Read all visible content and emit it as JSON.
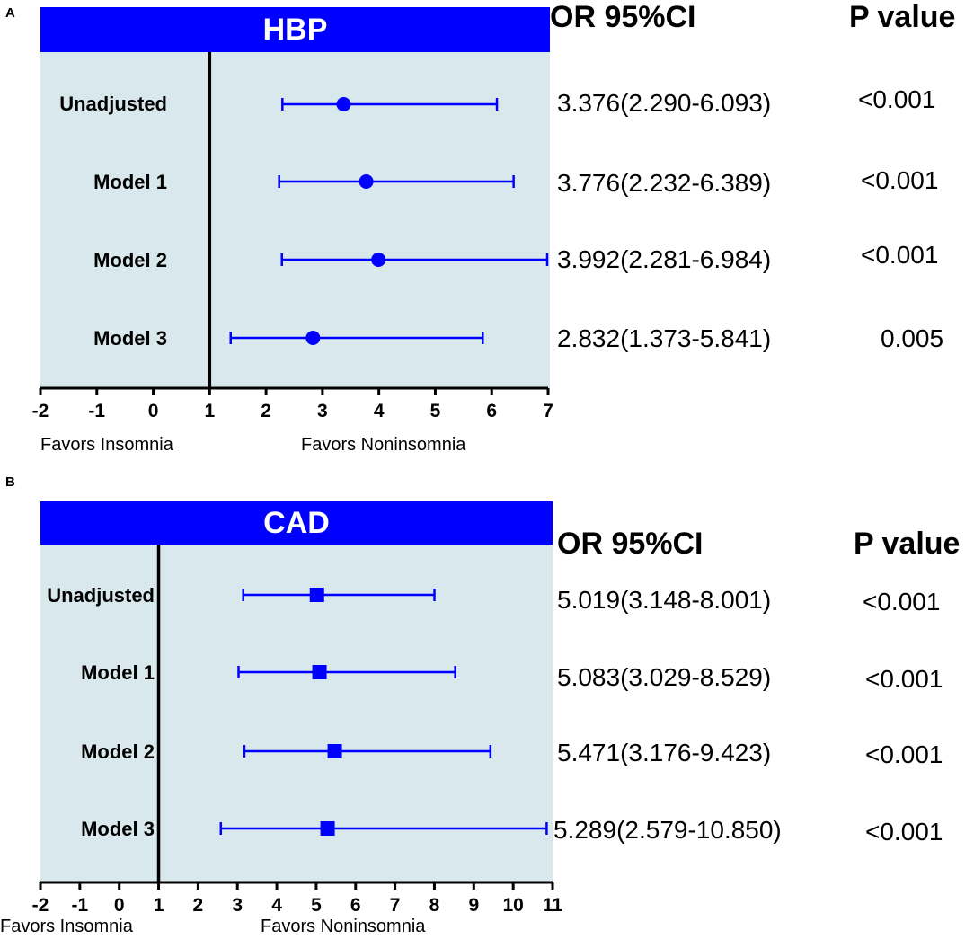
{
  "chart_data": [
    {
      "type": "forest",
      "panel_label": "A",
      "title": "HBP",
      "or_header": "OR 95%CI",
      "p_header": "P value",
      "xlim": [
        -2,
        7
      ],
      "x_ticks": [
        "-2",
        "-1",
        "0",
        "1",
        "2",
        "3",
        "4",
        "5",
        "6",
        "7"
      ],
      "reference_line": 1,
      "marker": "circle",
      "left_label": "Favors Insomnia",
      "right_label": "Favors Noninsomnia",
      "rows": [
        {
          "label": "Unadjusted",
          "or": 3.376,
          "lo": 2.29,
          "hi": 6.093,
          "or_text": "3.376(2.290-6.093)",
          "p": "<0.001"
        },
        {
          "label": "Model 1",
          "or": 3.776,
          "lo": 2.232,
          "hi": 6.389,
          "or_text": "3.776(2.232-6.389)",
          "p": "<0.001"
        },
        {
          "label": "Model 2",
          "or": 3.992,
          "lo": 2.281,
          "hi": 6.984,
          "or_text": "3.992(2.281-6.984)",
          "p": "<0.001"
        },
        {
          "label": "Model 3",
          "or": 2.832,
          "lo": 1.373,
          "hi": 5.841,
          "or_text": "2.832(1.373-5.841)",
          "p": "0.005"
        }
      ]
    },
    {
      "type": "forest",
      "panel_label": "B",
      "title": "CAD",
      "or_header": "OR 95%CI",
      "p_header": "P value",
      "xlim": [
        -2,
        11
      ],
      "x_ticks": [
        "-2",
        "-1",
        "0",
        "1",
        "2",
        "3",
        "4",
        "5",
        "6",
        "7",
        "8",
        "9",
        "10",
        "11"
      ],
      "reference_line": 1,
      "marker": "square",
      "left_label": "Favors Insomnia",
      "right_label": "Favors Noninsomnia",
      "rows": [
        {
          "label": "Unadjusted",
          "or": 5.019,
          "lo": 3.148,
          "hi": 8.001,
          "or_text": "5.019(3.148-8.001)",
          "p": "<0.001"
        },
        {
          "label": "Model 1",
          "or": 5.083,
          "lo": 3.029,
          "hi": 8.529,
          "or_text": "5.083(3.029-8.529)",
          "p": "<0.001"
        },
        {
          "label": "Model 2",
          "or": 5.471,
          "lo": 3.176,
          "hi": 9.423,
          "or_text": "5.471(3.176-9.423)",
          "p": "<0.001"
        },
        {
          "label": "Model 3",
          "or": 5.289,
          "lo": 2.579,
          "hi": 10.85,
          "or_text": "5.289(2.579-10.850)",
          "p": "<0.001"
        }
      ]
    }
  ],
  "colors": {
    "banner": "#0000ff",
    "plot_background": "#d9e8ec",
    "marker": "#0000ff",
    "axis": "#000000"
  }
}
